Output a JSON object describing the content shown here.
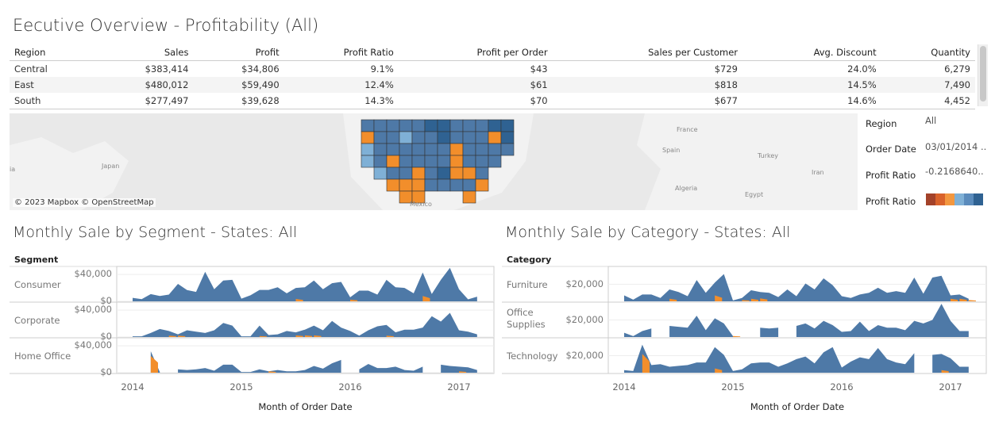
{
  "title": "Eecutive Overview - Profitability (All)",
  "table": {
    "columns": [
      "Region",
      "Sales",
      "Profit",
      "Profit Ratio",
      "Profit per Order",
      "Sales per Customer",
      "Avg. Discount",
      "Quantity"
    ],
    "rows": [
      [
        "Central",
        "$383,414",
        "$34,806",
        "9.1%",
        "$43",
        "$729",
        "24.0%",
        "6,279"
      ],
      [
        "East",
        "$480,012",
        "$59,490",
        "12.4%",
        "$61",
        "$818",
        "14.5%",
        "7,490"
      ],
      [
        "South",
        "$277,497",
        "$39,628",
        "14.3%",
        "$70",
        "$677",
        "14.6%",
        "4,452"
      ]
    ]
  },
  "map": {
    "attribution": "© 2023 Mapbox © OpenStreetMap",
    "labels": [
      "ia",
      "Japan",
      "France",
      "Spain",
      "Turkey",
      "Iran",
      "Algeria",
      "Egypt",
      "Mexico"
    ]
  },
  "filters": {
    "region_label": "Region",
    "region_value": "All",
    "order_date_label": "Order Date",
    "order_date_value": "03/01/2014 ..",
    "profit_ratio_label": "Profit Ratio",
    "profit_ratio_value": "-0.2168640..",
    "legend_label": "Profit Ratio",
    "legend_colors": [
      "#a3422a",
      "#d9622b",
      "#f3973f",
      "#7fb0d6",
      "#5a8bbc",
      "#2f6292"
    ]
  },
  "colors": {
    "area": "#4e79a7",
    "low_profit_ratio": "#f28e2b"
  },
  "chart_data": [
    {
      "type": "area",
      "title": "Monthly Sale by Segment - States: All",
      "row_header": "Segment",
      "xlabel": "Month of Order Date",
      "x_ticks": [
        "2014",
        "2015",
        "2016",
        "2017"
      ],
      "x_range": [
        "2014-01",
        "2017-03"
      ],
      "y_ticks": [
        "$40,000",
        "$0"
      ],
      "ylim": [
        0,
        52000
      ],
      "series": [
        {
          "name": "Consumer",
          "values": [
            5200,
            3200,
            10800,
            8000,
            10000,
            26000,
            16800,
            14000,
            44000,
            18000,
            31000,
            32000,
            4000,
            9000,
            17000,
            17000,
            21000,
            12000,
            20000,
            21000,
            31000,
            18000,
            27000,
            29000,
            6000,
            16000,
            16000,
            10000,
            32000,
            21000,
            20000,
            12000,
            43000,
            11000,
            32000,
            50000,
            18000,
            3000,
            7000
          ],
          "low_profit_ratio": [
            {
              "month": "2015-07",
              "value": 3500
            },
            {
              "month": "2016-01",
              "value": 2500
            },
            {
              "month": "2016-09",
              "value": 8000
            }
          ]
        },
        {
          "name": "Corporate",
          "values": [
            1000,
            1000,
            6000,
            12000,
            9000,
            4000,
            10000,
            8000,
            6000,
            10000,
            21000,
            17000,
            1000,
            1000,
            17000,
            3000,
            4000,
            9000,
            7000,
            11000,
            17000,
            10000,
            24000,
            14000,
            9000,
            2000,
            10000,
            16000,
            18000,
            7000,
            11000,
            11000,
            14000,
            31000,
            23000,
            36000,
            10000,
            8000,
            4000
          ],
          "low_profit_ratio": [
            {
              "month": "2014-05",
              "value": 2000
            },
            {
              "month": "2014-06",
              "value": 2000
            },
            {
              "month": "2015-03",
              "value": 1500
            },
            {
              "month": "2015-07",
              "value": 2500
            },
            {
              "month": "2015-08",
              "value": 2500
            },
            {
              "month": "2015-09",
              "value": 2500
            },
            {
              "month": "2016-05",
              "value": 2000
            }
          ]
        },
        {
          "name": "Home Office",
          "values": [
            6000,
            null,
            32000,
            1000,
            null,
            5000,
            4000,
            5000,
            7000,
            3000,
            12000,
            12000,
            1000,
            1000,
            5000,
            2000,
            4000,
            2000,
            2000,
            4000,
            10000,
            6000,
            14000,
            19000,
            null,
            5000,
            13000,
            7000,
            7000,
            9000,
            4000,
            3000,
            9000,
            null,
            12000,
            10000,
            9000,
            8000,
            4000
          ],
          "low_profit_ratio": [
            {
              "month": "2014-03",
              "value": 25000
            },
            {
              "month": "2015-04",
              "value": 2000
            },
            {
              "month": "2017-01",
              "value": 2000
            }
          ]
        }
      ]
    },
    {
      "type": "area",
      "title": "Monthly Sale by Category - States: All",
      "row_header": "Category",
      "xlabel": "Month of Order Date",
      "x_ticks": [
        "2014",
        "2015",
        "2016",
        "2017"
      ],
      "x_range": [
        "2014-01",
        "2017-03"
      ],
      "y_ticks": [
        "$20,000"
      ],
      "ylim": [
        0,
        41000
      ],
      "series": [
        {
          "name": "Furniture",
          "values": [
            7000,
            2000,
            8000,
            8000,
            4000,
            14000,
            11000,
            6000,
            25000,
            10000,
            22000,
            32000,
            1000,
            4000,
            13000,
            11000,
            10000,
            5000,
            14000,
            6000,
            21000,
            14000,
            27000,
            19000,
            6000,
            4000,
            8000,
            10000,
            16000,
            10000,
            12000,
            10000,
            28000,
            9000,
            28000,
            30000,
            7000,
            8000,
            3000
          ],
          "low_profit_ratio": [
            {
              "month": "2014-06",
              "value": 3000
            },
            {
              "month": "2014-11",
              "value": 7000
            },
            {
              "month": "2015-02",
              "value": 1500
            },
            {
              "month": "2015-03",
              "value": 3000
            },
            {
              "month": "2015-04",
              "value": 3500
            },
            {
              "month": "2017-01",
              "value": 3000
            },
            {
              "month": "2017-02",
              "value": 3000
            },
            {
              "month": "2017-03",
              "value": 1500
            }
          ]
        },
        {
          "name": "Office Supplies",
          "values": [
            5000,
            1000,
            7000,
            10000,
            null,
            13000,
            12000,
            11000,
            25000,
            8000,
            22000,
            16000,
            1000,
            null,
            null,
            11000,
            10000,
            11000,
            null,
            13000,
            16000,
            10000,
            19000,
            14000,
            6000,
            7000,
            18000,
            7000,
            14000,
            11000,
            11000,
            8000,
            19000,
            16000,
            20000,
            39000,
            19000,
            7000,
            7000
          ],
          "low_profit_ratio": [
            {
              "month": "2015-01",
              "value": 1200
            }
          ]
        },
        {
          "name": "Technology",
          "values": [
            3000,
            2000,
            33000,
            9000,
            10000,
            7000,
            8000,
            9000,
            12000,
            12000,
            30000,
            21000,
            2000,
            4000,
            11000,
            12000,
            12000,
            7000,
            11000,
            16000,
            19000,
            11000,
            24000,
            30000,
            6000,
            13000,
            18000,
            16000,
            29000,
            16000,
            12000,
            10000,
            23000,
            null,
            21000,
            22000,
            17000,
            7000,
            7000
          ],
          "low_profit_ratio": [
            {
              "month": "2014-03",
              "value": 22000
            },
            {
              "month": "2014-11",
              "value": 5000
            },
            {
              "month": "2016-12",
              "value": 3000
            }
          ]
        }
      ]
    }
  ]
}
